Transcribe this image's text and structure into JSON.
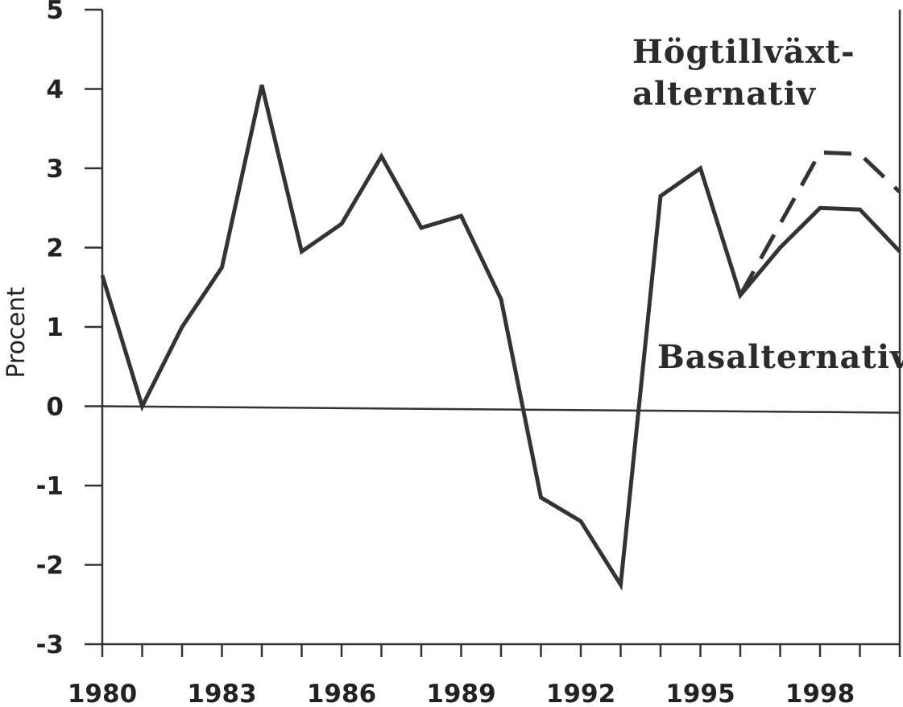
{
  "chart_data": {
    "type": "line",
    "title": "",
    "xlabel": "",
    "ylabel": "Procent",
    "ylim": [
      -3,
      5
    ],
    "xlim": [
      1980,
      2000
    ],
    "x_tick_labels": [
      "1980",
      "1983",
      "1986",
      "1989",
      "1992",
      "1995",
      "1998"
    ],
    "x_tick_values": [
      1980,
      1983,
      1986,
      1989,
      1992,
      1995,
      1998
    ],
    "y_ticks": [
      "5",
      "4",
      "3",
      "2",
      "1",
      "0",
      "-1",
      "-2",
      "-3"
    ],
    "y_tick_values": [
      5,
      4,
      3,
      2,
      1,
      0,
      -1,
      -2,
      -3
    ],
    "grid": false,
    "series": [
      {
        "name": "Basalternativ",
        "style": "solid",
        "x": [
          1980,
          1981,
          1982,
          1983,
          1984,
          1985,
          1986,
          1987,
          1988,
          1989,
          1990,
          1991,
          1992,
          1993,
          1994,
          1995,
          1996,
          1997,
          1998,
          1999,
          2000
        ],
        "values": [
          1.65,
          0.0,
          1.0,
          1.75,
          4.05,
          1.95,
          2.3,
          3.15,
          2.25,
          2.4,
          1.35,
          -1.15,
          -1.45,
          -2.25,
          2.65,
          3.0,
          1.4,
          2.0,
          2.5,
          2.48,
          1.95
        ]
      },
      {
        "name": "Högtillväxt-alternativ",
        "style": "dashed",
        "x": [
          1996,
          1997,
          1998,
          1999,
          2000
        ],
        "values": [
          1.4,
          2.3,
          3.2,
          3.18,
          2.7
        ]
      }
    ],
    "annotations": [
      {
        "text_lines": [
          "Högtillväxt-",
          "alternativ"
        ]
      },
      {
        "text_lines": [
          "Basalternativ"
        ]
      }
    ],
    "colors": {
      "line": "#333333",
      "background": "#ffffff"
    }
  }
}
